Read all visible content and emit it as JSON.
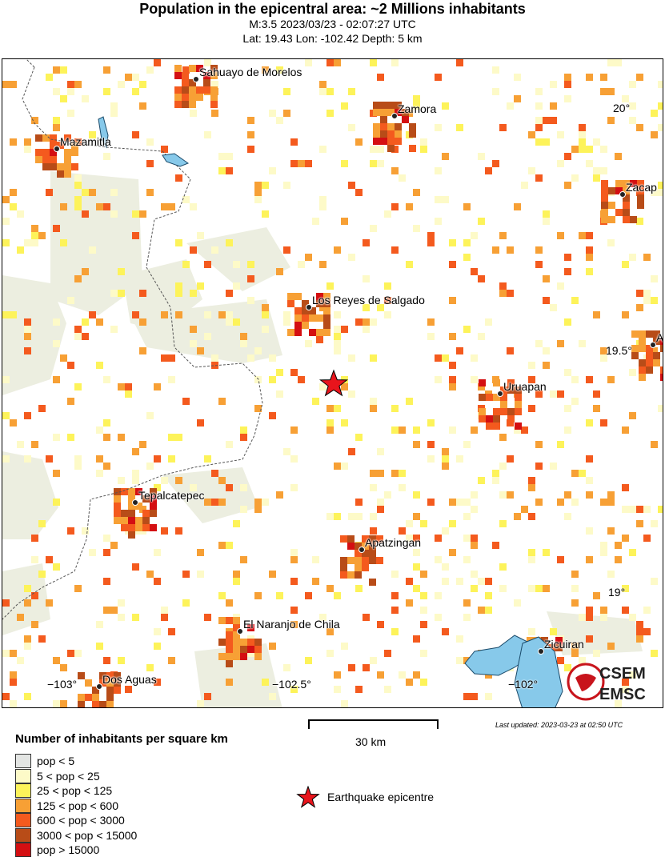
{
  "header": {
    "title": "Population in the epicentral area: ~2 Millions inhabitants",
    "magnitude_time": "M:3.5 2023/03/23 - 02:07:27 UTC",
    "location": "Lat: 19.43 Lon: -102.42 Depth: 5 km"
  },
  "map": {
    "epicenter": {
      "lat": 19.43,
      "lon": -102.42,
      "color": "#e8141c"
    },
    "cities": [
      {
        "name": "Sahuayo de Morelos"
      },
      {
        "name": "Zamora"
      },
      {
        "name": "Mazamitla"
      },
      {
        "name": "Zacap"
      },
      {
        "name": "Los Reyes de Salgado"
      },
      {
        "name": "A"
      },
      {
        "name": "Uruapan"
      },
      {
        "name": "Tepalcatepec"
      },
      {
        "name": "Apatzingan"
      },
      {
        "name": "El Naranjo de Chila"
      },
      {
        "name": "Dos Aguas"
      },
      {
        "name": "Zicuiran"
      }
    ],
    "lat_ticks": [
      "20°",
      "19.5°",
      "19°"
    ],
    "lon_ticks": [
      "−103°",
      "−102.5°",
      "−102°"
    ],
    "water_color": "#87c9ea",
    "logo": {
      "top": "CSEM",
      "bottom": "EMSC"
    }
  },
  "legend": {
    "title": "Number of inhabitants per square km",
    "items": [
      {
        "label": "pop < 5",
        "color": "#e3e5e3"
      },
      {
        "label": "5 < pop < 25",
        "color": "#fdfac8"
      },
      {
        "label": "25 < pop < 125",
        "color": "#fdf35a"
      },
      {
        "label": "125 < pop < 600",
        "color": "#f7a035"
      },
      {
        "label": "600 < pop < 3000",
        "color": "#f45a1e"
      },
      {
        "label": "3000 < pop < 15000",
        "color": "#b84c18"
      },
      {
        "label": "pop > 15000",
        "color": "#d40f12"
      }
    ],
    "epicentre_label": "Earthquake epicentre"
  },
  "scale_bar": {
    "label": "30 km"
  },
  "footer": {
    "last_updated": "Last updated: 2023-03-23 at 02:50 UTC"
  }
}
